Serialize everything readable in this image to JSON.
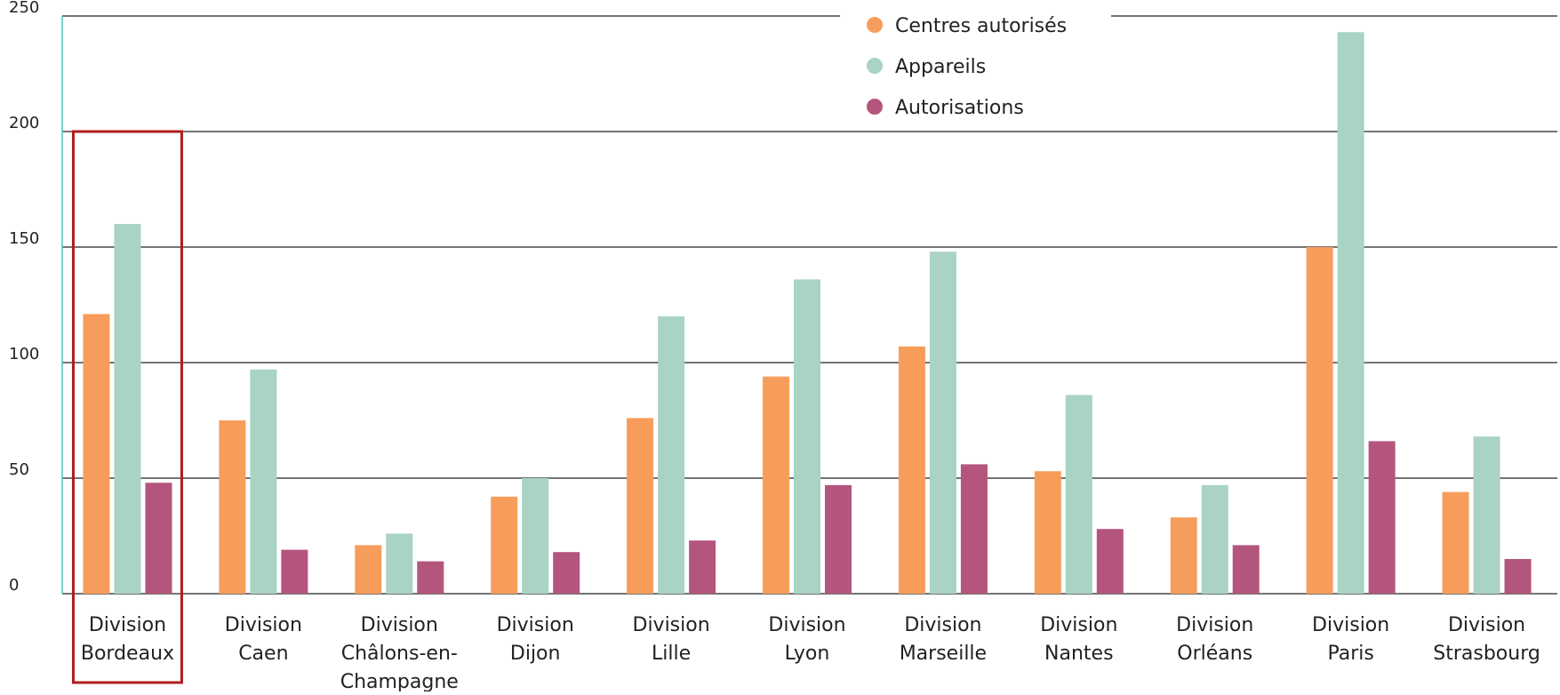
{
  "chart_data": {
    "type": "bar",
    "categories": [
      [
        "Division",
        "Bordeaux"
      ],
      [
        "Division",
        "Caen"
      ],
      [
        "Division",
        "Châlons-en-",
        "Champagne"
      ],
      [
        "Division",
        "Dijon"
      ],
      [
        "Division",
        "Lille"
      ],
      [
        "Division",
        "Lyon"
      ],
      [
        "Division",
        "Marseille"
      ],
      [
        "Division",
        "Nantes"
      ],
      [
        "Division",
        "Orléans"
      ],
      [
        "Division",
        "Paris"
      ],
      [
        "Division",
        "Strasbourg"
      ]
    ],
    "series": [
      {
        "name": "Centres autorisés",
        "color": "#f79d5c",
        "values": [
          121,
          75,
          21,
          42,
          76,
          94,
          107,
          53,
          33,
          150,
          44
        ]
      },
      {
        "name": "Appareils",
        "color": "#a9d3c2",
        "values": [
          160,
          97,
          26,
          50,
          120,
          136,
          148,
          86,
          47,
          243,
          68
        ]
      },
      {
        "name": "Autorisations",
        "color": "#b4557e",
        "values": [
          48,
          19,
          14,
          18,
          23,
          47,
          56,
          28,
          21,
          66,
          15
        ]
      }
    ],
    "ylim": [
      0,
      250
    ],
    "yticks": [
      0,
      50,
      100,
      150,
      200,
      250
    ],
    "grid": true,
    "legend_position": "top-center",
    "highlighted_category": 0,
    "highlight_color": "#b01c1c",
    "title": "",
    "xlabel": "",
    "ylabel": ""
  }
}
